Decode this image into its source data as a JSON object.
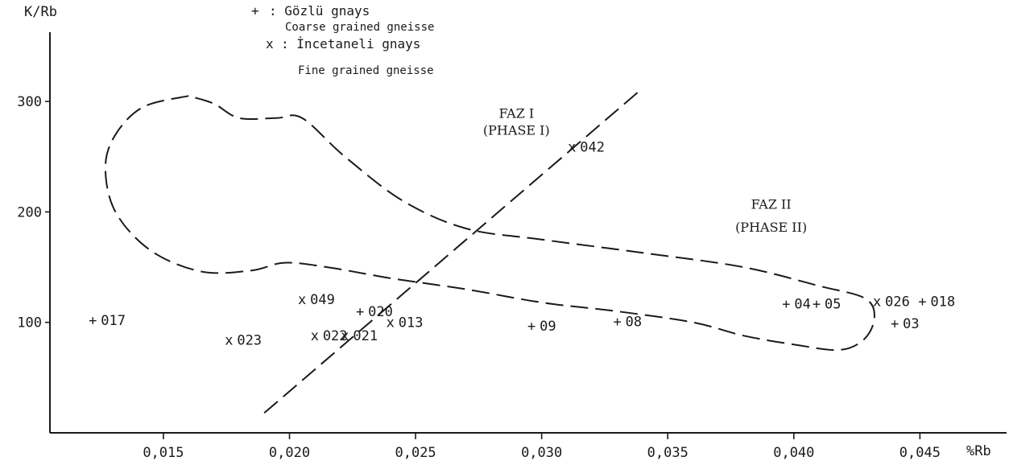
{
  "chart_data": {
    "type": "scatter",
    "ylabel": "K/Rb",
    "xlabel": "%Rb",
    "xlim": [
      0.0105,
      0.0485
    ],
    "ylim": [
      0,
      370
    ],
    "x_ticks": [
      {
        "value": 0.015,
        "label": "0,015"
      },
      {
        "value": 0.02,
        "label": "0,020"
      },
      {
        "value": 0.025,
        "label": "0,025"
      },
      {
        "value": 0.03,
        "label": "0,030"
      },
      {
        "value": 0.035,
        "label": "0,035"
      },
      {
        "value": 0.04,
        "label": "0,040"
      },
      {
        "value": 0.045,
        "label": "0,045"
      }
    ],
    "y_ticks": [
      {
        "value": 100,
        "label": "100"
      },
      {
        "value": 200,
        "label": "200"
      },
      {
        "value": 300,
        "label": "300"
      }
    ],
    "legend": [
      {
        "symbol": "+",
        "label_tr": ": Gözlü gnays",
        "label_en": "Coarse grained gneisse"
      },
      {
        "symbol": "x",
        "label_tr": ": İncetaneli gnays",
        "label_en": "Fine grained gneisse"
      }
    ],
    "series": [
      {
        "name": "Gözlü gnays",
        "symbol": "+",
        "points": [
          {
            "label": "017",
            "x": 0.0122,
            "y": 102
          },
          {
            "label": "020",
            "x": 0.0228,
            "y": 110
          },
          {
            "label": "09",
            "x": 0.0296,
            "y": 97
          },
          {
            "label": "08",
            "x": 0.033,
            "y": 101
          },
          {
            "label": "04",
            "x": 0.0397,
            "y": 117
          },
          {
            "label": "05",
            "x": 0.0409,
            "y": 117
          },
          {
            "label": "018",
            "x": 0.0451,
            "y": 119
          },
          {
            "label": "03",
            "x": 0.044,
            "y": 99
          }
        ]
      },
      {
        "name": "İncetaneli gnays",
        "symbol": "x",
        "points": [
          {
            "label": "049",
            "x": 0.0205,
            "y": 121
          },
          {
            "label": "023",
            "x": 0.0176,
            "y": 84
          },
          {
            "label": "022",
            "x": 0.021,
            "y": 88
          },
          {
            "label": "021",
            "x": 0.0222,
            "y": 88
          },
          {
            "label": "013",
            "x": 0.024,
            "y": 100
          },
          {
            "label": "042",
            "x": 0.0312,
            "y": 259
          },
          {
            "label": "026",
            "x": 0.0433,
            "y": 119
          }
        ]
      }
    ],
    "fields": [
      {
        "label": "FAZ I",
        "sublabel": "(PHASE I)",
        "label_at": [
          0.029,
          285
        ],
        "sublabel_at": [
          0.029,
          270
        ],
        "outline": [
          [
            0.016,
            305
          ],
          [
            0.0142,
            295
          ],
          [
            0.0131,
            270
          ],
          [
            0.0127,
            240
          ],
          [
            0.0131,
            200
          ],
          [
            0.0145,
            165
          ],
          [
            0.0165,
            146
          ],
          [
            0.0185,
            147
          ],
          [
            0.0198,
            154
          ],
          [
            0.0215,
            150
          ],
          [
            0.024,
            140
          ],
          [
            0.027,
            130
          ],
          [
            0.03,
            118
          ],
          [
            0.033,
            110
          ],
          [
            0.036,
            100
          ],
          [
            0.038,
            88
          ],
          [
            0.04,
            80
          ],
          [
            0.0418,
            75
          ],
          [
            0.0428,
            85
          ],
          [
            0.0432,
            105
          ],
          [
            0.0428,
            122
          ],
          [
            0.041,
            133
          ],
          [
            0.038,
            150
          ],
          [
            0.034,
            163
          ],
          [
            0.03,
            175
          ],
          [
            0.027,
            185
          ],
          [
            0.0245,
            210
          ],
          [
            0.0222,
            250
          ],
          [
            0.0205,
            285
          ],
          [
            0.0195,
            285
          ],
          [
            0.018,
            285
          ],
          [
            0.017,
            298
          ],
          [
            0.016,
            305
          ]
        ]
      },
      {
        "label": "FAZ II",
        "sublabel": "(PHASE II)",
        "label_at": [
          0.0391,
          203
        ],
        "sublabel_at": [
          0.0391,
          182
        ]
      }
    ],
    "lines": [
      {
        "from": [
          0.019,
          18
        ],
        "to": [
          0.0338,
          308
        ],
        "style": "dashed"
      }
    ]
  }
}
